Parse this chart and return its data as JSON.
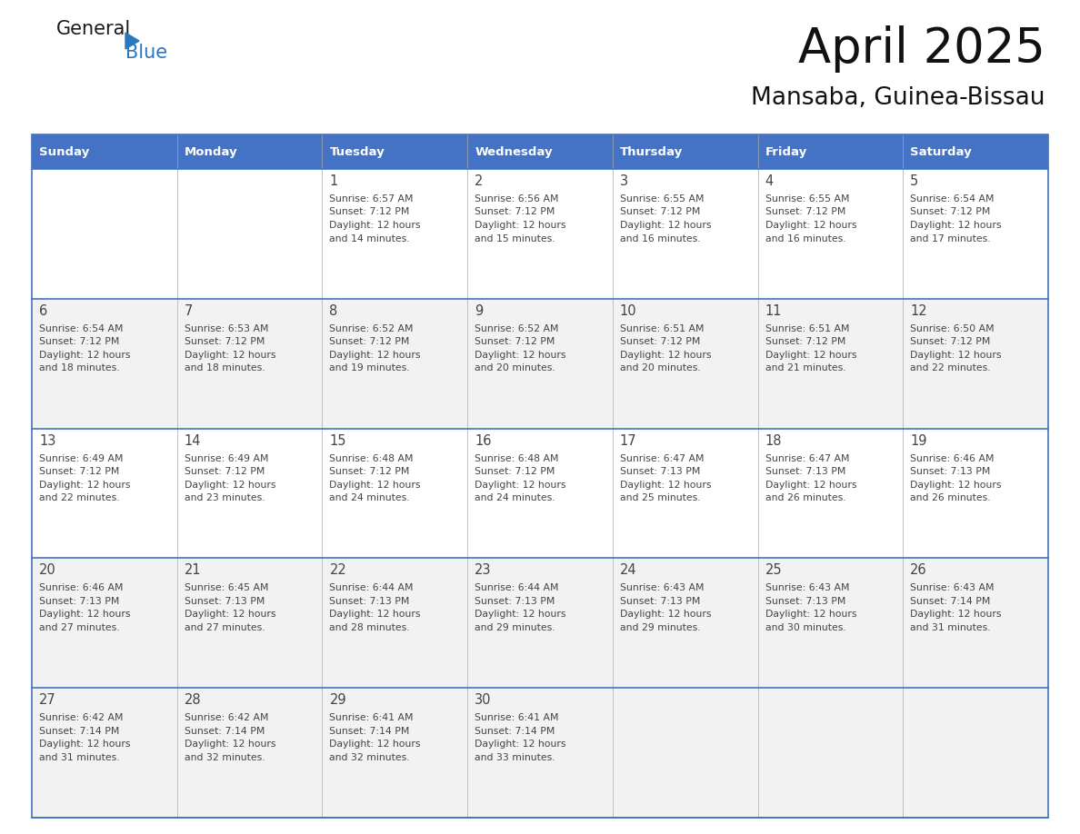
{
  "title": "April 2025",
  "subtitle": "Mansaba, Guinea-Bissau",
  "header_color": "#4472C4",
  "header_text_color": "#FFFFFF",
  "row_bg_colors": [
    "#FFFFFF",
    "#F2F2F2",
    "#FFFFFF",
    "#F2F2F2",
    "#F2F2F2"
  ],
  "separator_color": "#4472C4",
  "text_color": "#444444",
  "day_headers": [
    "Sunday",
    "Monday",
    "Tuesday",
    "Wednesday",
    "Thursday",
    "Friday",
    "Saturday"
  ],
  "weeks": [
    [
      {
        "day": "",
        "sunrise": "",
        "sunset": "",
        "daylight_min": ""
      },
      {
        "day": "",
        "sunrise": "",
        "sunset": "",
        "daylight_min": ""
      },
      {
        "day": "1",
        "sunrise": "6:57 AM",
        "sunset": "7:12 PM",
        "daylight_min": "14"
      },
      {
        "day": "2",
        "sunrise": "6:56 AM",
        "sunset": "7:12 PM",
        "daylight_min": "15"
      },
      {
        "day": "3",
        "sunrise": "6:55 AM",
        "sunset": "7:12 PM",
        "daylight_min": "16"
      },
      {
        "day": "4",
        "sunrise": "6:55 AM",
        "sunset": "7:12 PM",
        "daylight_min": "16"
      },
      {
        "day": "5",
        "sunrise": "6:54 AM",
        "sunset": "7:12 PM",
        "daylight_min": "17"
      }
    ],
    [
      {
        "day": "6",
        "sunrise": "6:54 AM",
        "sunset": "7:12 PM",
        "daylight_min": "18"
      },
      {
        "day": "7",
        "sunrise": "6:53 AM",
        "sunset": "7:12 PM",
        "daylight_min": "18"
      },
      {
        "day": "8",
        "sunrise": "6:52 AM",
        "sunset": "7:12 PM",
        "daylight_min": "19"
      },
      {
        "day": "9",
        "sunrise": "6:52 AM",
        "sunset": "7:12 PM",
        "daylight_min": "20"
      },
      {
        "day": "10",
        "sunrise": "6:51 AM",
        "sunset": "7:12 PM",
        "daylight_min": "20"
      },
      {
        "day": "11",
        "sunrise": "6:51 AM",
        "sunset": "7:12 PM",
        "daylight_min": "21"
      },
      {
        "day": "12",
        "sunrise": "6:50 AM",
        "sunset": "7:12 PM",
        "daylight_min": "22"
      }
    ],
    [
      {
        "day": "13",
        "sunrise": "6:49 AM",
        "sunset": "7:12 PM",
        "daylight_min": "22"
      },
      {
        "day": "14",
        "sunrise": "6:49 AM",
        "sunset": "7:12 PM",
        "daylight_min": "23"
      },
      {
        "day": "15",
        "sunrise": "6:48 AM",
        "sunset": "7:12 PM",
        "daylight_min": "24"
      },
      {
        "day": "16",
        "sunrise": "6:48 AM",
        "sunset": "7:12 PM",
        "daylight_min": "24"
      },
      {
        "day": "17",
        "sunrise": "6:47 AM",
        "sunset": "7:13 PM",
        "daylight_min": "25"
      },
      {
        "day": "18",
        "sunrise": "6:47 AM",
        "sunset": "7:13 PM",
        "daylight_min": "26"
      },
      {
        "day": "19",
        "sunrise": "6:46 AM",
        "sunset": "7:13 PM",
        "daylight_min": "26"
      }
    ],
    [
      {
        "day": "20",
        "sunrise": "6:46 AM",
        "sunset": "7:13 PM",
        "daylight_min": "27"
      },
      {
        "day": "21",
        "sunrise": "6:45 AM",
        "sunset": "7:13 PM",
        "daylight_min": "27"
      },
      {
        "day": "22",
        "sunrise": "6:44 AM",
        "sunset": "7:13 PM",
        "daylight_min": "28"
      },
      {
        "day": "23",
        "sunrise": "6:44 AM",
        "sunset": "7:13 PM",
        "daylight_min": "29"
      },
      {
        "day": "24",
        "sunrise": "6:43 AM",
        "sunset": "7:13 PM",
        "daylight_min": "29"
      },
      {
        "day": "25",
        "sunrise": "6:43 AM",
        "sunset": "7:13 PM",
        "daylight_min": "30"
      },
      {
        "day": "26",
        "sunrise": "6:43 AM",
        "sunset": "7:14 PM",
        "daylight_min": "31"
      }
    ],
    [
      {
        "day": "27",
        "sunrise": "6:42 AM",
        "sunset": "7:14 PM",
        "daylight_min": "31"
      },
      {
        "day": "28",
        "sunrise": "6:42 AM",
        "sunset": "7:14 PM",
        "daylight_min": "32"
      },
      {
        "day": "29",
        "sunrise": "6:41 AM",
        "sunset": "7:14 PM",
        "daylight_min": "32"
      },
      {
        "day": "30",
        "sunrise": "6:41 AM",
        "sunset": "7:14 PM",
        "daylight_min": "33"
      },
      {
        "day": "",
        "sunrise": "",
        "sunset": "",
        "daylight_min": ""
      },
      {
        "day": "",
        "sunrise": "",
        "sunset": "",
        "daylight_min": ""
      },
      {
        "day": "",
        "sunrise": "",
        "sunset": "",
        "daylight_min": ""
      }
    ]
  ],
  "logo_general_color": "#1a1a1a",
  "logo_blue_color": "#2878C0",
  "logo_triangle_color": "#2878C0"
}
